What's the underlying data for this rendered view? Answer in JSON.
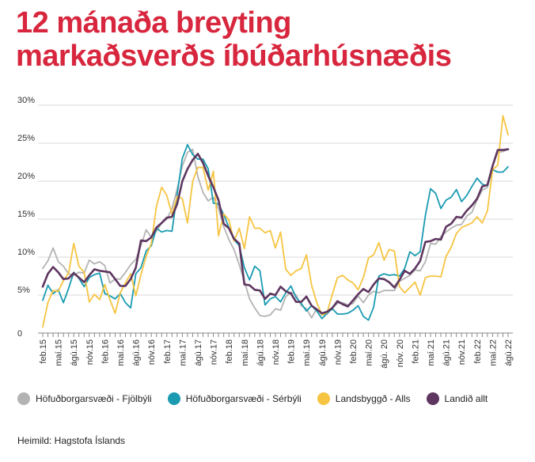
{
  "title_line1": "12 mánaða breyting",
  "title_line2": "markaðsverðs íbúðarhúsnæðis",
  "source": "Heimild: Hagstofa Íslands",
  "colors": {
    "title": "#d7263d",
    "grid": "#d9d9d9",
    "axis": "#888888",
    "text": "#333333"
  },
  "chart_data": {
    "type": "line",
    "x": [
      "feb.15",
      "mar.15",
      "apr.15",
      "maí.15",
      "jún.15",
      "júl.15",
      "ágú.15",
      "sep.15",
      "okt.15",
      "nóv.15",
      "des.15",
      "jan.16",
      "feb.16",
      "mar.16",
      "apr.16",
      "maí.16",
      "jún.16",
      "júl.16",
      "ágú.16",
      "sep.16",
      "okt.16",
      "nóv.16",
      "des.16",
      "jan.17",
      "feb.17",
      "mar.17",
      "apr.17",
      "maí.17",
      "jún.17",
      "júl.17",
      "ágú.17",
      "sep.17",
      "okt.17",
      "nóv.17",
      "des.17",
      "jan.18",
      "feb.18",
      "mar.18",
      "apr.18",
      "maí.18",
      "jún.18",
      "júl.18",
      "ágú.18",
      "sep.18",
      "okt.18",
      "nóv.18",
      "des.18",
      "jan.19",
      "feb.19",
      "mar.19",
      "apr.19",
      "maí.19",
      "jún.19",
      "júl.19",
      "ágú.19",
      "sep.19",
      "okt.19",
      "nóv.19",
      "des.19",
      "jan.20",
      "feb.20",
      "mar.20",
      "apr.20",
      "maí.20",
      "jún.20",
      "júl.20",
      "ágú.20",
      "sep.20",
      "okt.20",
      "nóv.20",
      "des.20",
      "jan.21",
      "feb.21",
      "mar.21",
      "apr.21",
      "maí.21",
      "jún.21",
      "júl.21",
      "ágú.21",
      "sep.21",
      "okt.21",
      "nóv.21",
      "des.21",
      "jan.22",
      "feb.22",
      "mar.22",
      "apr.22",
      "maí.22",
      "jún.22",
      "júl.22",
      "ágú.22"
    ],
    "tick_labels": [
      "feb.15",
      "maí.15",
      "ágú.15",
      "nóv.15",
      "feb.16",
      "maí.16",
      "ágú.16",
      "nóv.16",
      "feb.17",
      "maí.17",
      "ágú.17",
      "nóv.17",
      "feb.18",
      "maí.18",
      "ágú.18",
      "nóv.18",
      "feb.19",
      "maí.19",
      "ágú.19",
      "nóv.19",
      "feb.20",
      "maí.20",
      "ágú. 20",
      "nóv. 20",
      "feb.21",
      "maí.21",
      "ágú.21",
      "nóv.21",
      "feb.22",
      "maí.22",
      "ágú.22"
    ],
    "y_ticks": [
      "0",
      "5%",
      "10%",
      "15%",
      "20%",
      "25%",
      "30%"
    ],
    "ylim": [
      0,
      30
    ],
    "y_unit": "%",
    "grid": "horizontal",
    "legend_position": "bottom",
    "series": [
      {
        "name": "Höfuðborgarsvæði - Fjölbýli",
        "color": "#b3b3b3",
        "values": [
          8.5,
          9.5,
          11.2,
          9.4,
          8.8,
          7.8,
          7.6,
          8.0,
          7.9,
          9.6,
          9.1,
          9.4,
          8.9,
          6.6,
          7.1,
          7.1,
          8.0,
          9.0,
          9.7,
          11.5,
          13.6,
          12.6,
          13.4,
          14.5,
          15.0,
          16.4,
          19.0,
          22.0,
          23.8,
          24.2,
          20.6,
          18.5,
          17.4,
          17.9,
          16.4,
          14.0,
          12.3,
          11.0,
          9.0,
          6.8,
          4.5,
          3.3,
          2.3,
          2.2,
          2.4,
          3.2,
          3.0,
          4.8,
          5.4,
          5.0,
          3.6,
          3.2,
          2.0,
          3.2,
          2.4,
          2.5,
          3.3,
          3.9,
          4.0,
          3.7,
          3.9,
          4.9,
          4.0,
          5.0,
          5.5,
          5.3,
          5.6,
          5.6,
          5.6,
          6.8,
          7.2,
          7.6,
          8.3,
          8.2,
          9.4,
          11.8,
          11.7,
          12.7,
          13.3,
          13.8,
          14.2,
          14.3,
          15.4,
          15.9,
          17.5,
          18.8,
          19.2,
          22.0,
          23.8,
          23.9,
          24.2
        ]
      },
      {
        "name": "Höfuðborgarsvæði - Sérbýli",
        "color": "#1a9bb1",
        "values": [
          4.3,
          6.3,
          5.2,
          5.7,
          4.0,
          5.9,
          8.0,
          7.2,
          6.1,
          7.3,
          7.7,
          7.9,
          5.2,
          4.9,
          4.5,
          5.2,
          4.0,
          3.3,
          7.8,
          8.6,
          10.8,
          11.5,
          13.8,
          13.3,
          13.5,
          13.4,
          18.3,
          23.0,
          24.8,
          23.5,
          22.9,
          22.9,
          21.6,
          17.1,
          17.0,
          15.6,
          13.9,
          12.3,
          11.5,
          8.6,
          7.0,
          8.8,
          8.2,
          3.7,
          4.5,
          4.8,
          4.1,
          5.3,
          6.2,
          4.7,
          3.9,
          2.9,
          3.6,
          2.9,
          1.9,
          2.6,
          3.2,
          2.5,
          2.5,
          2.6,
          3.0,
          3.6,
          2.2,
          1.7,
          3.4,
          7.5,
          7.8,
          7.6,
          7.7,
          7.5,
          8.5,
          10.7,
          10.2,
          10.7,
          15.5,
          19.0,
          18.4,
          16.4,
          17.5,
          17.9,
          18.9,
          17.3,
          18.1,
          19.3,
          20.4,
          19.6,
          19.4,
          21.5,
          21.2,
          21.2,
          21.9
        ]
      },
      {
        "name": "Landsbyggð - Alls",
        "color": "#f6c441",
        "values": [
          0.8,
          4.0,
          5.6,
          5.5,
          6.9,
          7.9,
          11.8,
          8.8,
          8.0,
          4.1,
          5.1,
          4.4,
          6.4,
          4.4,
          2.6,
          5.3,
          6.6,
          7.8,
          4.9,
          7.7,
          10.1,
          11.8,
          16.7,
          19.2,
          18.1,
          15.6,
          18.0,
          17.7,
          14.5,
          20.0,
          21.8,
          21.8,
          18.8,
          21.3,
          12.8,
          15.7,
          14.9,
          12.1,
          13.8,
          11.1,
          15.3,
          13.8,
          13.8,
          13.2,
          13.5,
          11.2,
          13.3,
          8.4,
          7.6,
          8.2,
          8.5,
          10.3,
          6.3,
          4.0,
          2.4,
          2.7,
          5.1,
          7.3,
          7.6,
          7.0,
          6.6,
          5.7,
          7.3,
          9.9,
          10.3,
          11.9,
          9.6,
          11.0,
          10.8,
          6.1,
          5.3,
          6.0,
          6.7,
          5.0,
          7.3,
          7.5,
          7.5,
          7.4,
          10.1,
          11.3,
          13.1,
          13.9,
          14.2,
          14.5,
          15.3,
          14.5,
          16.1,
          21.5,
          22.1,
          28.6,
          26.1
        ]
      },
      {
        "name": "Landið allt",
        "color": "#5e3660",
        "values": [
          6.1,
          7.8,
          8.7,
          8.0,
          7.1,
          7.2,
          7.9,
          7.3,
          6.7,
          7.6,
          8.4,
          8.2,
          8.1,
          8.0,
          7.1,
          6.2,
          6.2,
          7.1,
          8.6,
          12.2,
          12.1,
          12.6,
          13.9,
          14.5,
          15.2,
          15.3,
          17.0,
          20.0,
          21.6,
          22.8,
          23.6,
          22.4,
          20.7,
          19.2,
          17.5,
          14.4,
          13.8,
          12.4,
          11.8,
          6.4,
          6.3,
          5.7,
          5.6,
          4.5,
          5.2,
          5.0,
          6.1,
          5.5,
          5.2,
          4.1,
          4.1,
          4.8,
          3.6,
          3.1,
          2.6,
          2.8,
          3.3,
          4.2,
          3.8,
          3.5,
          4.3,
          5.1,
          5.8,
          5.4,
          6.4,
          7.2,
          7.1,
          6.7,
          6.0,
          7.0,
          8.2,
          7.8,
          8.5,
          9.5,
          12.0,
          12.1,
          12.4,
          12.3,
          14.0,
          14.4,
          15.3,
          15.2,
          16.1,
          16.8,
          17.7,
          19.3,
          19.5,
          22.0,
          24.1,
          24.1,
          24.2
        ]
      }
    ]
  }
}
